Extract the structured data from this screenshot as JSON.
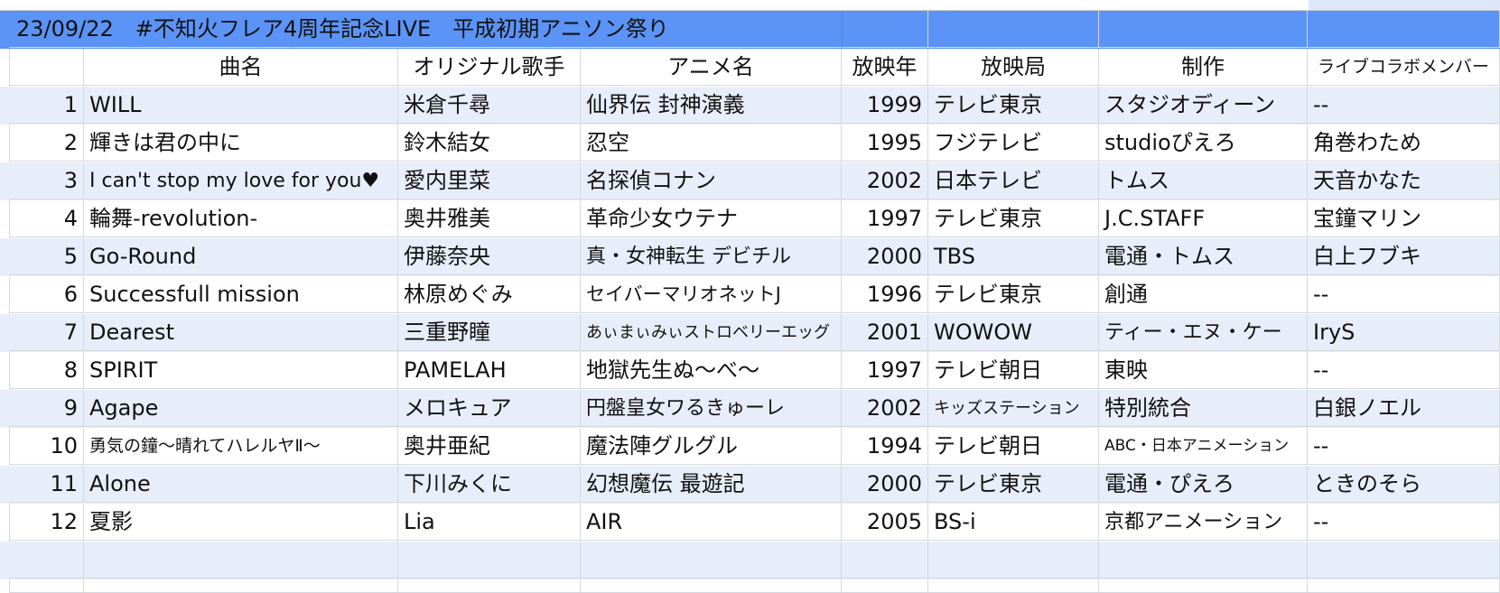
{
  "title": "23/09/22　#不知火フレア4周年記念LIVE　平成初期アニソン祭り",
  "headers": {
    "no": "",
    "song": "曲名",
    "artist": "オリジナル歌手",
    "anime": "アニメ名",
    "year": "放映年",
    "station": "放映局",
    "studio": "制作",
    "collab": "ライブコラボメンバー"
  },
  "rows": [
    {
      "no": "1",
      "song": "WILL",
      "artist": "米倉千尋",
      "anime": "仙界伝 封神演義",
      "year": "1999",
      "station": "テレビ東京",
      "studio": "スタジオディーン",
      "collab": "--"
    },
    {
      "no": "2",
      "song": "輝きは君の中に",
      "artist": "鈴木結女",
      "anime": "忍空",
      "year": "1995",
      "station": "フジテレビ",
      "studio": "studioぴえろ",
      "collab": "角巻わため"
    },
    {
      "no": "3",
      "song": "I can't stop my love for you♥",
      "artist": "愛内里菜",
      "anime": "名探偵コナン",
      "year": "2002",
      "station": "日本テレビ",
      "studio": "トムス",
      "collab": "天音かなた"
    },
    {
      "no": "4",
      "song": "輪舞-revolution-",
      "artist": "奥井雅美",
      "anime": "革命少女ウテナ",
      "year": "1997",
      "station": "テレビ東京",
      "studio": "J.C.STAFF",
      "collab": "宝鐘マリン"
    },
    {
      "no": "5",
      "song": "Go-Round",
      "artist": "伊藤奈央",
      "anime": "真・女神転生 デビチル",
      "year": "2000",
      "station": "TBS",
      "studio": "電通・トムス",
      "collab": "白上フブキ"
    },
    {
      "no": "6",
      "song": "Successfull mission",
      "artist": "林原めぐみ",
      "anime": "セイバーマリオネットJ",
      "year": "1996",
      "station": "テレビ東京",
      "studio": "創通",
      "collab": "--"
    },
    {
      "no": "7",
      "song": "Dearest",
      "artist": "三重野瞳",
      "anime": "あぃまぃみぃストロベリーエッグ",
      "year": "2001",
      "station": "WOWOW",
      "studio": "ティー・エヌ・ケー",
      "collab": "IryS"
    },
    {
      "no": "8",
      "song": "SPIRIT",
      "artist": "PAMELAH",
      "anime": "地獄先生ぬ～べ～",
      "year": "1997",
      "station": "テレビ朝日",
      "studio": "東映",
      "collab": "--"
    },
    {
      "no": "9",
      "song": "Agape",
      "artist": "メロキュア",
      "anime": "円盤皇女ワるきゅーレ",
      "year": "2002",
      "station": "キッズステーション",
      "studio": "特別統合",
      "collab": "白銀ノエル"
    },
    {
      "no": "10",
      "song": "勇気の鐘～晴れてハレルヤⅡ～",
      "artist": "奥井亜紀",
      "anime": "魔法陣グルグル",
      "year": "1994",
      "station": "テレビ朝日",
      "studio": "ABC・日本アニメーション",
      "collab": "--"
    },
    {
      "no": "11",
      "song": "Alone",
      "artist": "下川みくに",
      "anime": "幻想魔伝 最遊記",
      "year": "2000",
      "station": "テレビ東京",
      "studio": "電通・ぴえろ",
      "collab": "ときのそら"
    },
    {
      "no": "12",
      "song": "夏影",
      "artist": "Lia",
      "anime": "AIR",
      "year": "2005",
      "station": "BS-i",
      "studio": "京都アニメーション",
      "collab": "--"
    }
  ],
  "colors": {
    "title_bg": "#5b93f6",
    "band_bg": "#e8eef9",
    "grid": "#d4d7dd"
  }
}
